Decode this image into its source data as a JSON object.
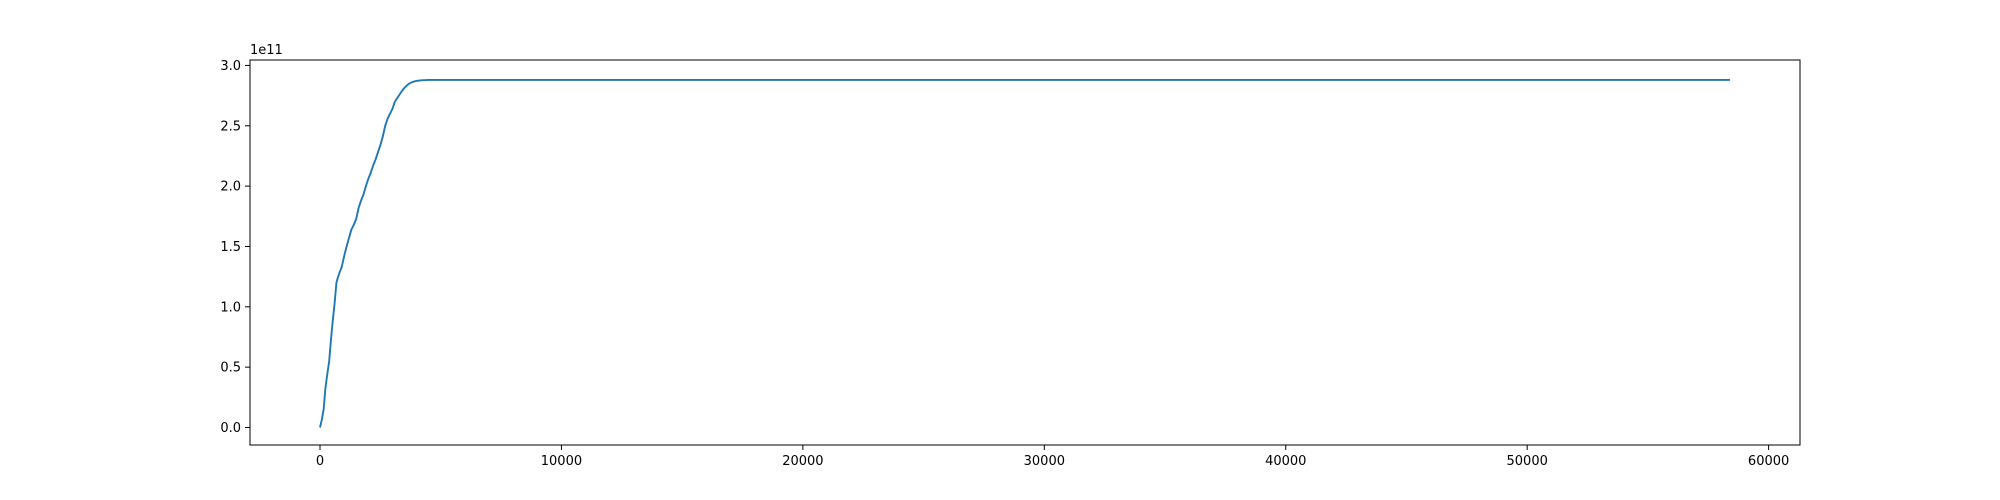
{
  "chart_data": {
    "type": "line",
    "title": "",
    "xlabel": "",
    "ylabel": "",
    "y_offset_text": "1e11",
    "xlim": [
      -2900,
      61300
    ],
    "ylim": [
      -0.145,
      3.045
    ],
    "x_ticks": [
      0,
      10000,
      20000,
      30000,
      40000,
      50000,
      60000
    ],
    "x_tick_labels": [
      "0",
      "10000",
      "20000",
      "30000",
      "40000",
      "50000",
      "60000"
    ],
    "y_ticks": [
      0.0,
      0.5,
      1.0,
      1.5,
      2.0,
      2.5,
      3.0
    ],
    "y_tick_labels": [
      "0.0",
      "0.5",
      "1.0",
      "1.5",
      "2.0",
      "2.5",
      "3.0"
    ],
    "grid": false,
    "legend": "none",
    "series": [
      {
        "color": "#1f77b4",
        "x": [
          0,
          80,
          150,
          220,
          300,
          380,
          450,
          520,
          600,
          680,
          750,
          820,
          900,
          1000,
          1100,
          1200,
          1300,
          1400,
          1500,
          1600,
          1700,
          1800,
          1900,
          2000,
          2100,
          2200,
          2300,
          2400,
          2500,
          2600,
          2700,
          2800,
          2900,
          3000,
          3100,
          3200,
          3300,
          3400,
          3500,
          3600,
          3700,
          3800,
          3900,
          4000,
          4100,
          4200,
          4300,
          4400,
          4500,
          5000,
          10000,
          20000,
          30000,
          40000,
          50000,
          58400
        ],
        "y": [
          0.0,
          0.07,
          0.15,
          0.32,
          0.44,
          0.55,
          0.72,
          0.87,
          1.02,
          1.2,
          1.25,
          1.29,
          1.33,
          1.42,
          1.5,
          1.57,
          1.64,
          1.68,
          1.73,
          1.82,
          1.88,
          1.93,
          2.0,
          2.06,
          2.11,
          2.17,
          2.22,
          2.28,
          2.34,
          2.41,
          2.5,
          2.56,
          2.6,
          2.64,
          2.7,
          2.73,
          2.76,
          2.79,
          2.815,
          2.835,
          2.85,
          2.86,
          2.867,
          2.872,
          2.875,
          2.877,
          2.878,
          2.879,
          2.88,
          2.88,
          2.88,
          2.88,
          2.88,
          2.88,
          2.88,
          2.88
        ]
      }
    ]
  }
}
